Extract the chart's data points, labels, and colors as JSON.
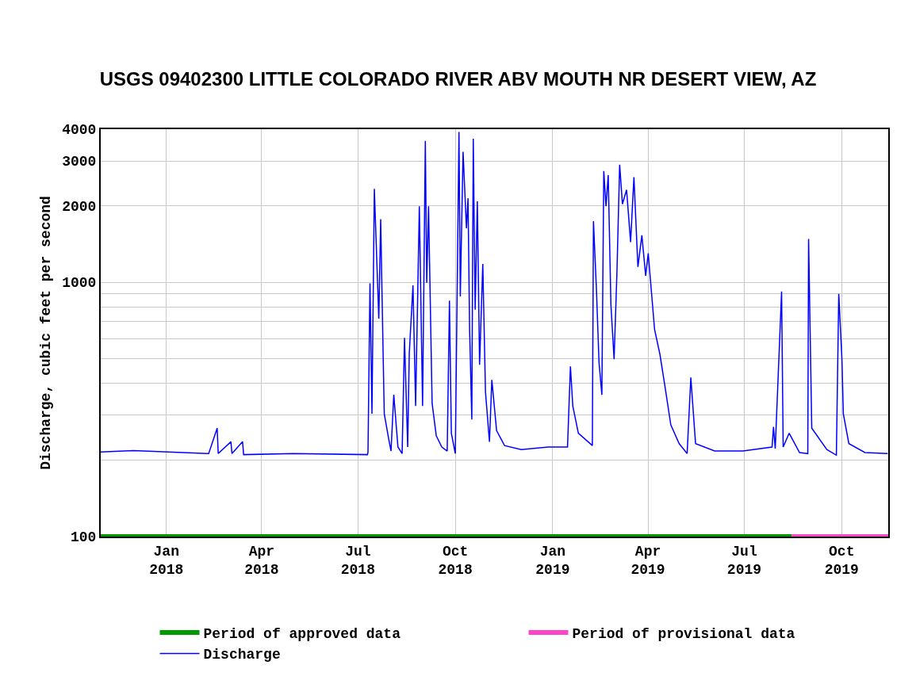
{
  "chart_data": {
    "type": "line",
    "title": "USGS 09402300 LITTLE COLORADO RIVER ABV MOUTH NR DESERT VIEW, AZ",
    "ylabel": "Discharge, cubic feet per second",
    "log": "y",
    "grid": true,
    "legend": "bottom",
    "line_style": "solid",
    "marker": "none",
    "xlim": [
      "2017-10-31",
      "2019-11-14"
    ],
    "xticks": [
      {
        "value": "2018-01-01",
        "label": "Jan\n2018"
      },
      {
        "value": "2018-04-01",
        "label": "Apr\n2018"
      },
      {
        "value": "2018-07-01",
        "label": "Jul\n2018"
      },
      {
        "value": "2018-10-01",
        "label": "Oct\n2018"
      },
      {
        "value": "2019-01-01",
        "label": "Jan\n2019"
      },
      {
        "value": "2019-04-01",
        "label": "Apr\n2019"
      },
      {
        "value": "2019-07-01",
        "label": "Jul\n2019"
      },
      {
        "value": "2019-10-01",
        "label": "Oct\n2019"
      }
    ],
    "ylim": [
      100,
      4000
    ],
    "yticks": [
      100,
      {
        "value": 200,
        "label": null
      },
      {
        "value": 300,
        "label": null
      },
      {
        "value": 400,
        "label": null
      },
      {
        "value": 500,
        "label": null
      },
      {
        "value": 600,
        "label": null
      },
      {
        "value": 700,
        "label": null
      },
      {
        "value": 800,
        "label": null
      },
      {
        "value": 900,
        "label": null
      },
      1000,
      2000,
      3000,
      4000
    ],
    "series": [
      {
        "name": "Period of provisional data",
        "color": "#ff44cc",
        "x": [
          "2019-08-15",
          "2019-11-14"
        ],
        "values": [
          100,
          100
        ]
      },
      {
        "name": "Period of approved data",
        "color": "#009900",
        "x": [
          "2017-10-31",
          "2019-08-15"
        ],
        "values": [
          100,
          100
        ]
      },
      {
        "name": "Discharge",
        "color": "#0000ff",
        "x": [
          "2017-10-31",
          "2017-12-01",
          "2018-02-10",
          "2018-02-18",
          "2018-02-19",
          "2018-03-03",
          "2018-03-04",
          "2018-03-14",
          "2018-03-15",
          "2018-05-01",
          "2018-07-10",
          "2018-07-10T12:00",
          "2018-07-12T09:00",
          "2018-07-14T06:00",
          "2018-07-16T12:00",
          "2018-07-20T17:00",
          "2018-07-22T12:00",
          "2018-07-24T18:00",
          "2018-07-25T21:00",
          "2018-07-30",
          "2018-08-01T06:00",
          "2018-08-03T21:00",
          "2018-08-07T19:00",
          "2018-08-11T18:00",
          "2018-08-14",
          "2018-08-17",
          "2018-08-18T12:00",
          "2018-08-22",
          "2018-08-24T12:00",
          "2018-08-28",
          "2018-08-31T02:00",
          "2018-09-02T16:00",
          "2018-09-04",
          "2018-09-05T17:00",
          "2018-09-09T02:00",
          "2018-09-13",
          "2018-09-18T06:00",
          "2018-09-23T08:00",
          "2018-09-25T11:00",
          "2018-09-27T06:00",
          "2018-10-01",
          "2018-10-04T11:00",
          "2018-10-05T17:00",
          "2018-10-08T08:00",
          "2018-10-11T12:00",
          "2018-10-13",
          "2018-10-14T12:00",
          "2018-10-16T14:00",
          "2018-10-17T23:00",
          "2018-10-19T18:00",
          "2018-10-21T19:00",
          "2018-10-23T22:00",
          "2018-10-26T23:00",
          "2018-10-29T12:00",
          "2018-11-02T06:00",
          "2018-11-04T12:00",
          "2018-11-09",
          "2018-11-16T12:00",
          "2018-12-02T06:00",
          "2018-12-27T18:00",
          "2019-01-15",
          "2019-01-17T18:00",
          "2019-01-20",
          "2019-01-25T06:00",
          "2019-02-07T11:00",
          "2019-02-08T12:00",
          "2019-02-11T07:00",
          "2019-02-13T18:00",
          "2019-02-16T11:00",
          "2019-02-18T06:00",
          "2019-02-20T08:00",
          "2019-02-22T11:00",
          "2019-02-25",
          "2019-02-28",
          "2019-03-02T17:00",
          "2019-03-05T06:00",
          "2019-03-07T21:00",
          "2019-03-11T19:00",
          "2019-03-15T14:00",
          "2019-03-18T18:00",
          "2019-03-22T12:00",
          "2019-03-26T06:00",
          "2019-03-29T20:00",
          "2019-04-01T06:00",
          "2019-04-04T06:00",
          "2019-04-07T06:00",
          "2019-04-12T07:00",
          "2019-04-17T11:00",
          "2019-04-22T14:00",
          "2019-04-30T12:00",
          "2019-05-08",
          "2019-05-11T12:00",
          "2019-05-15T23:00",
          "2019-06-03",
          "2019-06-29T18:00",
          "2019-07-27T06:00",
          "2019-07-28T14:00",
          "2019-07-30T06:00",
          "2019-08-05T06:00",
          "2019-08-06T18:00",
          "2019-08-12T10:00",
          "2019-08-22T05:00",
          "2019-08-30",
          "2019-08-30T18:00",
          "2019-09-02T18:00",
          "2019-09-17",
          "2019-09-26",
          "2019-09-28T06:00",
          "2019-10-01T06:00",
          "2019-10-02T14:00",
          "2019-10-07T19:00",
          "2019-10-23",
          "2019-11-13T12:00"
        ],
        "values": [
          215,
          218,
          212,
          267,
          212,
          236,
          212,
          236,
          210,
          212,
          210,
          215,
          990,
          304,
          2330,
          720,
          1770,
          535,
          304,
          243,
          217,
          361,
          225,
          212,
          605,
          225,
          525,
          973,
          326,
          1990,
          326,
          3600,
          995,
          1990,
          334,
          249,
          225,
          217,
          848,
          255,
          212,
          3900,
          880,
          3260,
          1630,
          2140,
          650,
          289,
          3670,
          780,
          2080,
          474,
          1180,
          370,
          236,
          413,
          261,
          228,
          220,
          225,
          225,
          467,
          326,
          255,
          228,
          1740,
          945,
          484,
          361,
          2740,
          1990,
          2640,
          815,
          498,
          1100,
          2900,
          2030,
          2310,
          1440,
          2590,
          1150,
          1530,
          1060,
          1300,
          920,
          652,
          521,
          380,
          275,
          232,
          212,
          422,
          232,
          217,
          217,
          225,
          270,
          222,
          920,
          225,
          255,
          214,
          212,
          1480,
          267,
          220,
          209,
          900,
          498,
          304,
          232,
          214,
          212
        ]
      }
    ]
  }
}
